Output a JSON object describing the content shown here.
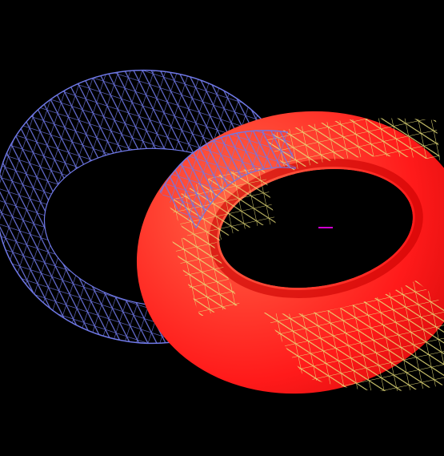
{
  "scene": {
    "background_color": "#000000",
    "objects": [
      {
        "id": "blue-torus",
        "render_mode": "wireframe",
        "wire_color": "#6f78e6",
        "wire_shadow_color": "#2e336b"
      },
      {
        "id": "red-torus",
        "render_mode": "shaded",
        "fill_color": "#ff1a1a",
        "shade_color": "#b80000",
        "highlight_color": "#ff6a4a",
        "overlay_wire_color": "#e9e07a"
      }
    ],
    "marker": {
      "color": "#d000d0"
    }
  }
}
